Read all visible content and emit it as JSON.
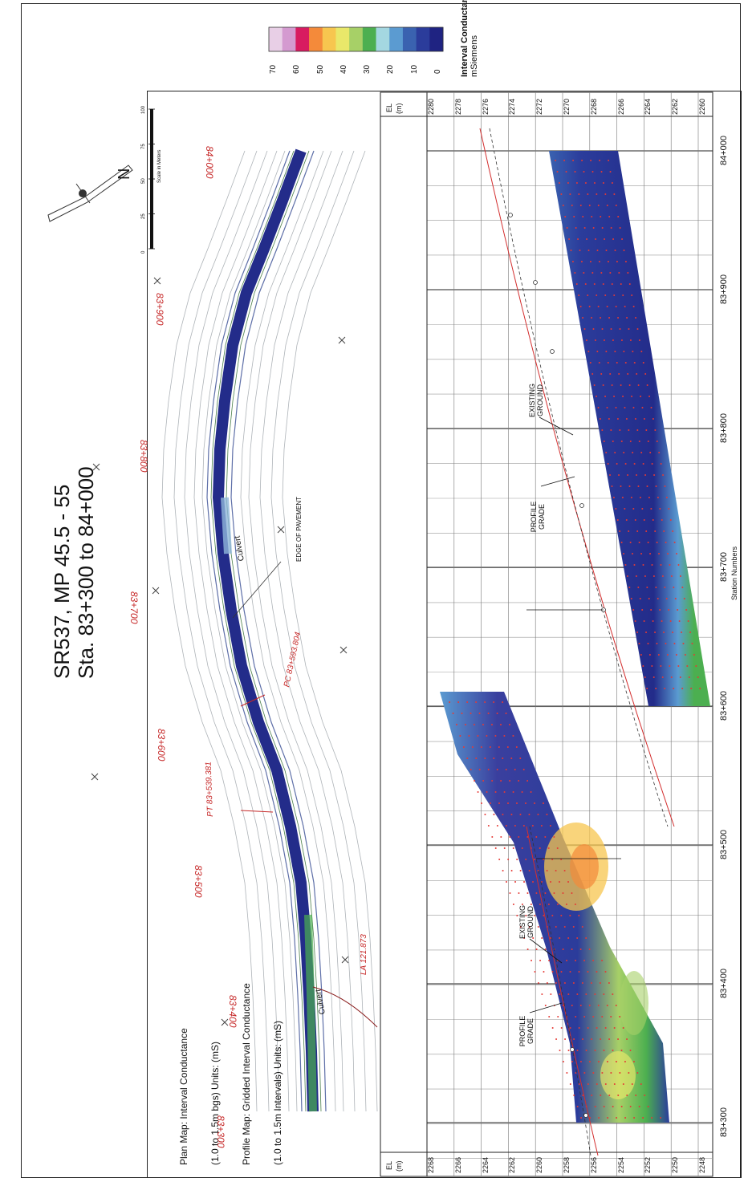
{
  "title": {
    "line1": "SR537, MP 45.5 - 55",
    "line2": "Sta. 83+300 to 84+000"
  },
  "legend": {
    "title": "Interval Conductance",
    "unit": "mSiemens",
    "ticks": [
      "70",
      "60",
      "50",
      "40",
      "30",
      "20",
      "10",
      "0"
    ],
    "colors": [
      "#e8cfe6",
      "#d49ad0",
      "#d81b60",
      "#f48a3a",
      "#f7c64f",
      "#e9e86a",
      "#a7d067",
      "#4caf50",
      "#a4d7e1",
      "#5b9bd1",
      "#3a62b0",
      "#2b3c9b",
      "#1f2382"
    ]
  },
  "plan_notes": {
    "line1": "Plan Map: Interval Conductance",
    "line2": "(1.0 to 1.5m bgs) Units: (mS)",
    "line3": "Profile Map: Gridded Interval Conductance",
    "line4": "(1.0 to 1.5m Intervals) Units: (mS)"
  },
  "scale_bar": {
    "caption": "Scale in Meters",
    "ticks": [
      "0",
      "25",
      "50",
      "75",
      "100"
    ]
  },
  "north_label": "N",
  "map_stations": [
    "84+000",
    "83+900",
    "83+800",
    "83+700",
    "83+600",
    "83+500",
    "83+400",
    "83+300"
  ],
  "map_annotations": {
    "pc": "PC 83+593.804",
    "pt": "PT 83+539.381",
    "la": "LA 121.873",
    "culvert1": "Culvert",
    "culvert2": "Culvert",
    "edge": "EDGE OF PAVEMENT"
  },
  "profile": {
    "el_header": "EL",
    "el_unit": "(m)",
    "right_elevations": [
      "2280",
      "2278",
      "2276",
      "2274",
      "2272",
      "2270",
      "2268",
      "2266",
      "2264",
      "2262",
      "2260"
    ],
    "left_elevations": [
      "2268",
      "2266",
      "2264",
      "2262",
      "2260",
      "2258",
      "2256",
      "2254",
      "2252",
      "2250",
      "2248"
    ],
    "stations": [
      "84+000",
      "83+900",
      "83+800",
      "83+700",
      "83+600",
      "83+500",
      "83+400",
      "83+300"
    ],
    "axis_label": "Station Numbers",
    "labels": {
      "existing_ground": "EXISTING GROUND",
      "profile_grade": "PROFILE GRADE"
    }
  }
}
